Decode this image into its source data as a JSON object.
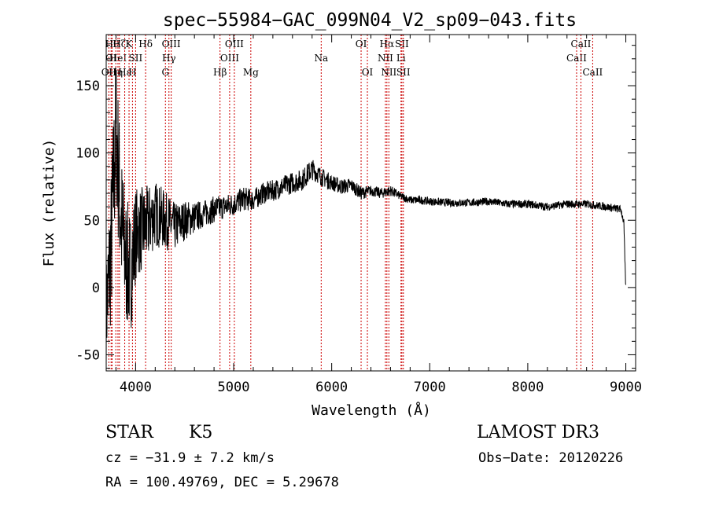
{
  "chart_data": {
    "type": "line",
    "title": "spec−55984−GAC_099N04_V2_sp09−043.fits",
    "xlabel": "Wavelength (Å)",
    "ylabel": "Flux (relative)",
    "xlim": [
      3700,
      9100
    ],
    "ylim": [
      -62,
      188
    ],
    "xticks": [
      4000,
      5000,
      6000,
      7000,
      8000,
      9000
    ],
    "yticks": [
      -50,
      0,
      50,
      100,
      150
    ],
    "grid": false,
    "line_color": "#000000",
    "marker_color": "#cc0000",
    "series": [
      {
        "name": "flux",
        "x": [
          3700,
          3750,
          3800,
          3850,
          3900,
          3950,
          4000,
          4100,
          4200,
          4300,
          4400,
          4500,
          4600,
          4700,
          4800,
          4900,
          5000,
          5100,
          5200,
          5300,
          5400,
          5500,
          5600,
          5700,
          5800,
          5850,
          5900,
          6000,
          6100,
          6200,
          6300,
          6400,
          6500,
          6600,
          6700,
          6800,
          6900,
          7000,
          7200,
          7400,
          7600,
          7800,
          8000,
          8200,
          8400,
          8600,
          8800,
          8950,
          8980,
          8990,
          9000
        ],
        "y": [
          -20,
          30,
          120,
          50,
          20,
          10,
          40,
          45,
          55,
          50,
          45,
          50,
          52,
          55,
          58,
          60,
          62,
          66,
          65,
          70,
          72,
          75,
          78,
          80,
          88,
          85,
          82,
          78,
          75,
          76,
          70,
          72,
          70,
          72,
          68,
          65,
          65,
          64,
          63,
          63,
          64,
          62,
          62,
          60,
          62,
          62,
          60,
          58,
          48,
          20,
          0
        ],
        "noise": [
          40,
          60,
          60,
          55,
          50,
          45,
          35,
          30,
          25,
          22,
          18,
          15,
          12,
          10,
          10,
          9,
          9,
          9,
          8,
          8,
          8,
          8,
          8,
          8,
          8,
          7,
          7,
          6,
          6,
          5,
          5,
          4,
          4,
          4,
          3,
          3,
          3,
          3,
          3,
          3,
          3,
          3,
          3,
          3,
          3,
          3,
          3,
          3,
          3,
          3,
          3
        ]
      }
    ],
    "line_markers": [
      {
        "wl": 3727,
        "label": "OII",
        "row": 3
      },
      {
        "wl": 3750,
        "label": "OI",
        "row": 2
      },
      {
        "wl": 3760,
        "label": "Hθ",
        "row": 1
      },
      {
        "wl": 3798,
        "label": "Hη",
        "row": 3
      },
      {
        "wl": 3820,
        "label": "HeI",
        "row": 2
      },
      {
        "wl": 3835,
        "label": "Hζ",
        "row": 1
      },
      {
        "wl": 3889,
        "label": "Hε",
        "row": 3
      },
      {
        "wl": 3933,
        "label": "K",
        "row": 1
      },
      {
        "wl": 3968,
        "label": "H",
        "row": 3
      },
      {
        "wl": 4000,
        "label": "SII",
        "row": 2
      },
      {
        "wl": 4102,
        "label": "Hδ",
        "row": 1
      },
      {
        "wl": 4304,
        "label": "G",
        "row": 3
      },
      {
        "wl": 4340,
        "label": "Hγ",
        "row": 2
      },
      {
        "wl": 4363,
        "label": "OIII",
        "row": 1
      },
      {
        "wl": 4861,
        "label": "Hβ",
        "row": 3
      },
      {
        "wl": 4959,
        "label": "OIII",
        "row": 2
      },
      {
        "wl": 5007,
        "label": "OIII",
        "row": 1
      },
      {
        "wl": 5175,
        "label": "Mg",
        "row": 3
      },
      {
        "wl": 5893,
        "label": "Na",
        "row": 2
      },
      {
        "wl": 6300,
        "label": "OI",
        "row": 1
      },
      {
        "wl": 6364,
        "label": "OI",
        "row": 3
      },
      {
        "wl": 6548,
        "label": "NII",
        "row": 2
      },
      {
        "wl": 6563,
        "label": "Hα",
        "row": 1
      },
      {
        "wl": 6583,
        "label": "NII",
        "row": 3
      },
      {
        "wl": 6707,
        "label": "Li",
        "row": 2
      },
      {
        "wl": 6716,
        "label": "SII",
        "row": 1
      },
      {
        "wl": 6731,
        "label": "SII",
        "row": 3
      },
      {
        "wl": 8498,
        "label": "CaII",
        "row": 2
      },
      {
        "wl": 8542,
        "label": "CaII",
        "row": 1
      },
      {
        "wl": 8662,
        "label": "CaII",
        "row": 3
      }
    ]
  },
  "info": {
    "object_class": "STAR",
    "subclass": "K5",
    "survey": "LAMOST DR3",
    "cz_line": "cz = −31.9 ± 7.2 km/s",
    "obs_date_line": "Obs−Date: 20120226",
    "radec_line": "RA = 100.49769, DEC =   5.29678"
  }
}
